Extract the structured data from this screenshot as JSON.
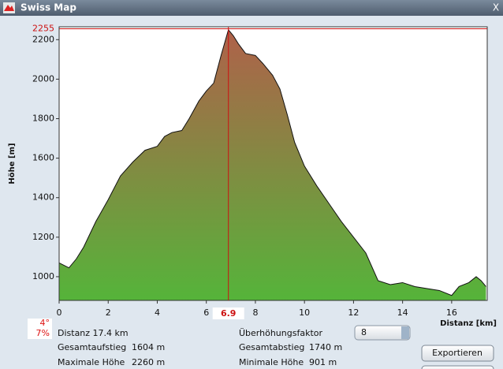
{
  "window": {
    "title": "Swiss Map",
    "close": "X"
  },
  "chart_data": {
    "type": "area",
    "y_label": "Höhe [m]",
    "x_label": "Distanz [km]",
    "x": [
      0,
      0.4,
      0.7,
      1.0,
      1.5,
      2.0,
      2.5,
      3.0,
      3.5,
      4.0,
      4.3,
      4.6,
      5.0,
      5.3,
      5.7,
      6.0,
      6.3,
      6.6,
      6.9,
      7.1,
      7.3,
      7.6,
      8.0,
      8.3,
      8.7,
      9.0,
      9.3,
      9.6,
      10.0,
      10.5,
      11.0,
      11.5,
      12.0,
      12.5,
      13.0,
      13.5,
      14.0,
      14.5,
      15.0,
      15.5,
      16.0,
      16.3,
      16.7,
      17.0,
      17.2,
      17.4
    ],
    "values": [
      1070,
      1045,
      1090,
      1150,
      1280,
      1390,
      1510,
      1580,
      1640,
      1660,
      1710,
      1730,
      1740,
      1800,
      1890,
      1940,
      1980,
      2120,
      2250,
      2220,
      2180,
      2130,
      2120,
      2080,
      2020,
      1950,
      1820,
      1680,
      1560,
      1460,
      1370,
      1280,
      1200,
      1120,
      980,
      960,
      970,
      950,
      940,
      930,
      905,
      950,
      970,
      1000,
      980,
      950
    ],
    "xlim": [
      0,
      17.45
    ],
    "ylim": [
      880,
      2265
    ],
    "xticks": [
      0,
      2,
      4,
      6,
      8,
      10,
      12,
      14,
      16
    ],
    "yticks": [
      1000,
      1200,
      1400,
      1600,
      1800,
      2000,
      2200
    ],
    "max_line": 2255,
    "cursor": 6.9,
    "color_top": "#b0604a",
    "color_bottom": "#55b43a",
    "line_color": "#cc1111"
  },
  "panel": {
    "slope": "4°",
    "grade": "7%",
    "distance": "Distanz 17.4 km",
    "ascent_label": "Gesamtaufstieg",
    "ascent": "1604 m",
    "max_label": "Maximale Höhe",
    "max": "2260 m",
    "factor_label": "Überhöhungsfaktor",
    "factor": "8",
    "descent_label": "Gesamtabstieg",
    "descent": "1740 m",
    "min_label": "Minimale Höhe",
    "min": "901 m",
    "export": "Exportieren"
  }
}
